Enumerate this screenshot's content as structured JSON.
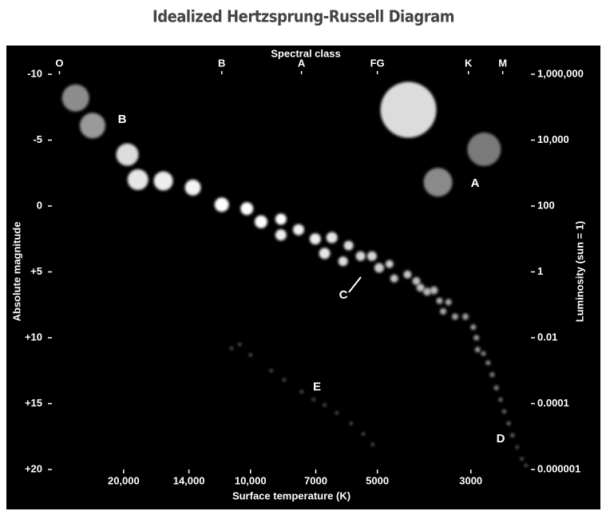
{
  "chart_data": {
    "type": "scatter",
    "title": "Idealized Hertzsprung-Russell Diagram",
    "x_label": "Surface temperature (K)",
    "x2_label": "Spectral class",
    "y_label": "Absolute magnitude",
    "y2_label": "Luminosity (sun = 1)",
    "xscale": "log",
    "y2scale": "log",
    "xlim": [
      29600,
      2160
    ],
    "ylim": [
      -10,
      20
    ],
    "y2lim": [
      1000000,
      1e-06
    ],
    "xticks": [
      {
        "value": 20000,
        "label": "20,000"
      },
      {
        "value": 14000,
        "label": "14,000"
      },
      {
        "value": 10000,
        "label": "10,000"
      },
      7000,
      5000,
      3000
    ],
    "x2ticks": [
      {
        "value": 28400,
        "label": "O"
      },
      {
        "value": 11700,
        "label": "B"
      },
      {
        "value": 7570,
        "label": "A"
      },
      {
        "value": 5000,
        "label": "FG"
      },
      {
        "value": 3040,
        "label": "K"
      },
      {
        "value": 2520,
        "label": "M"
      }
    ],
    "yticks": [
      -10,
      -5,
      0,
      {
        "value": 5,
        "label": "+5"
      },
      {
        "value": 10,
        "label": "+10"
      },
      {
        "value": 15,
        "label": "+15"
      },
      {
        "value": 20,
        "label": "+20"
      }
    ],
    "y2ticks": [
      {
        "value": 1000000,
        "label": "1,000,000"
      },
      {
        "value": 10000,
        "label": "10,000"
      },
      100,
      1,
      0.01,
      0.0001,
      1e-06
    ],
    "annotations": [
      "A",
      "B",
      "C",
      "D",
      "E"
    ],
    "x": [
      26000,
      23700,
      19600,
      18500,
      16100,
      13700,
      11700,
      10200,
      9440,
      8470,
      8470,
      7690,
      7020,
      6670,
      6410,
      6030,
      5850,
      5480,
      5150,
      4950,
      4680,
      4560,
      4240,
      4040,
      3950,
      3810,
      3670,
      3560,
      3490,
      3390,
      3270,
      3090,
      2960,
      2910,
      2890,
      2800,
      2730,
      2670,
      2610,
      2550,
      2500,
      2440,
      2390,
      2330,
      2270,
      2220,
      4220,
      2790,
      3590,
      11100,
      10600,
      10000,
      8930,
      8320,
      7560,
      7080,
      6670,
      6240,
      5770,
      5400,
      5130
    ],
    "values": [
      -8.2,
      -6.1,
      -3.9,
      -2.0,
      -1.9,
      -1.4,
      -0.1,
      0.2,
      1.2,
      1.0,
      2.2,
      1.8,
      2.5,
      3.6,
      2.4,
      4.2,
      3.0,
      3.8,
      3.8,
      4.7,
      4.4,
      5.5,
      5.2,
      5.7,
      6.2,
      6.5,
      6.4,
      7.2,
      8.0,
      7.3,
      8.4,
      8.4,
      9.2,
      10.0,
      10.9,
      11.2,
      11.9,
      12.8,
      13.8,
      14.7,
      15.6,
      16.5,
      17.4,
      18.3,
      19.2,
      19.7,
      -7.3,
      -4.3,
      -1.8,
      10.8,
      10.5,
      11.3,
      12.5,
      13.2,
      14.1,
      14.7,
      15.1,
      15.7,
      16.5,
      17.3,
      18.1
    ],
    "sizes": [
      17,
      16,
      14,
      13,
      12,
      10,
      9,
      8,
      8,
      7,
      7,
      7,
      7,
      7,
      7,
      6,
      6,
      6,
      6,
      6,
      5,
      5,
      5,
      5,
      5,
      5,
      5,
      4,
      4,
      4,
      4,
      4,
      3.5,
      3.5,
      3.5,
      3,
      3,
      3,
      3,
      2.5,
      2.5,
      2.5,
      2.5,
      2,
      2,
      2,
      35,
      21,
      18,
      2,
      2,
      2,
      2,
      2,
      2,
      2,
      2,
      2,
      2,
      2,
      2
    ],
    "colors": [
      "#8c8c8c",
      "#9a9a9a",
      "#dddddd",
      "#e6e6e6",
      "#eeeeee",
      "#f4f4f4",
      "#ffffff",
      "#ffffff",
      "#ffffff",
      "#ffffff",
      "#f0f0f0",
      "#f0f0f0",
      "#f0f0f0",
      "#e8e8e8",
      "#e8e8e8",
      "#e0e0e0",
      "#e0e0e0",
      "#d8d8d8",
      "#d8d8d8",
      "#d0d0d0",
      "#d0d0d0",
      "#c8c8c8",
      "#c8c8c8",
      "#c0c0c0",
      "#c0c0c0",
      "#b8b8b8",
      "#b8b8b8",
      "#b0b0b0",
      "#b0b0b0",
      "#a8a8a8",
      "#a8a8a8",
      "#a0a0a0",
      "#a0a0a0",
      "#999999",
      "#999999",
      "#909090",
      "#909090",
      "#888888",
      "#888888",
      "#808080",
      "#808080",
      "#787878",
      "#787878",
      "#707070",
      "#707070",
      "#686868",
      "#dcdcdc",
      "#7a7a7a",
      "#8a8a8a",
      "#666666",
      "#666666",
      "#666666",
      "#666666",
      "#666666",
      "#666666",
      "#666666",
      "#666666",
      "#666666",
      "#666666",
      "#666666",
      "#666666"
    ]
  }
}
